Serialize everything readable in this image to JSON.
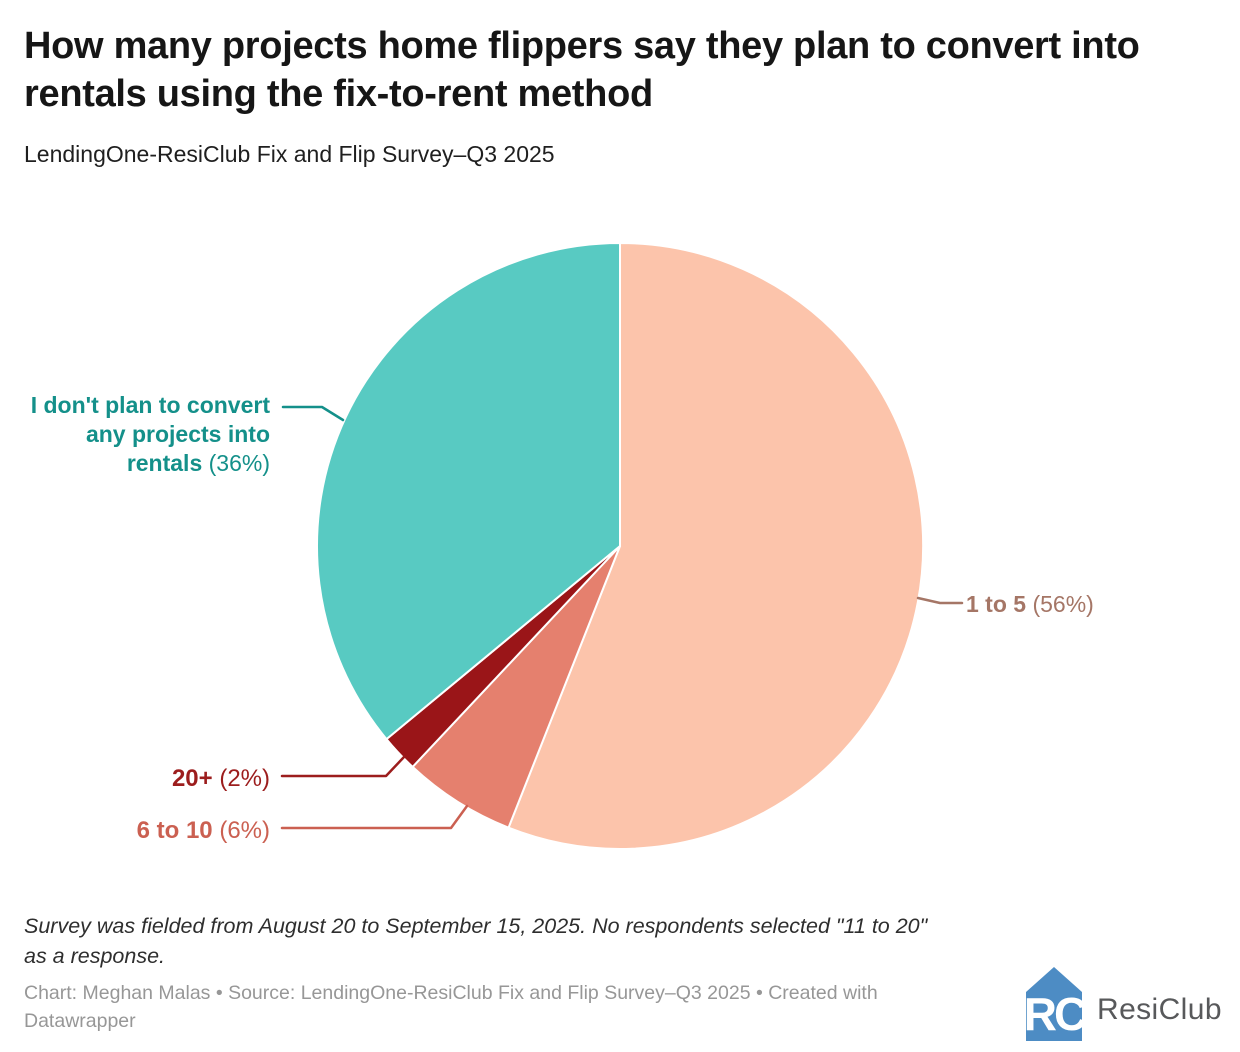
{
  "header": {
    "title": "How many projects home flippers say they plan to convert into rentals using the fix-to-rent method",
    "subtitle": "LendingOne-ResiClub Fix and Flip Survey–Q3 2025"
  },
  "chart_data": {
    "type": "pie",
    "title": "How many projects home flippers say they plan to convert into rentals using the fix-to-rent method",
    "subtitle": "LendingOne-ResiClub Fix and Flip Survey–Q3 2025",
    "start_angle_deg": 0,
    "direction": "clockwise",
    "slices": [
      {
        "label": "1 to 5",
        "pct": 56,
        "color": "#fcc4ab",
        "label_color": "#a57666"
      },
      {
        "label": "6 to 10",
        "pct": 6,
        "color": "#e5806e",
        "label_color": "#cb6051"
      },
      {
        "label": "20+",
        "pct": 2,
        "color": "#9a1518",
        "label_color": "#9c1d1d"
      },
      {
        "label": "I don't plan to convert any projects into rentals",
        "pct": 36,
        "color": "#58cac2",
        "label_color": "#14908a"
      }
    ],
    "legend_position": "callout-labels",
    "grid": false
  },
  "callouts": {
    "none": {
      "lines": [
        "I don't plan to convert",
        "any projects into",
        "rentals"
      ],
      "pct": "(36%)"
    },
    "one_to_five": {
      "text": "1 to 5",
      "pct": "(56%)"
    },
    "twenty_plus": {
      "text": "20+",
      "pct": "(2%)"
    },
    "six_to_ten": {
      "text": "6 to 10",
      "pct": "(6%)"
    }
  },
  "footer": {
    "note_line1": "Survey was fielded from August 20 to September 15, 2025. No respondents selected \"11 to 20\"",
    "note_line2": "as a response.",
    "attribution_line1": "Chart: Meghan Malas • Source: LendingOne-ResiClub Fix and Flip Survey–Q3 2025 • Created with",
    "attribution_line2": "Datawrapper",
    "logo_text": "ResiClub",
    "logo_color": "#4d8cc4"
  }
}
